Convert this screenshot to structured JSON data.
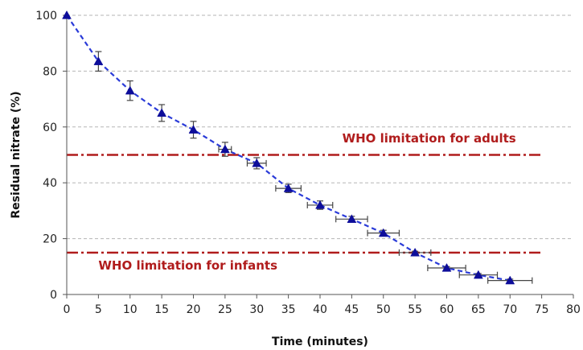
{
  "chart_data": {
    "type": "scatter",
    "title": "",
    "xlabel": "Time (minutes)",
    "ylabel": "Residual nitrate (%)",
    "xlim": [
      0,
      80
    ],
    "ylim": [
      0,
      100
    ],
    "x_ticks": [
      0,
      5,
      10,
      15,
      20,
      25,
      30,
      35,
      40,
      45,
      50,
      55,
      60,
      65,
      70,
      75,
      80
    ],
    "y_ticks": [
      0,
      20,
      40,
      60,
      80,
      100
    ],
    "grid": "horizontal dashed",
    "series": [
      {
        "x": [
          0,
          5,
          10,
          15,
          20,
          25,
          30,
          35,
          40,
          45,
          50,
          55,
          60,
          65,
          70
        ],
        "y": [
          100,
          83.5,
          73,
          65,
          59,
          52,
          47,
          38,
          32,
          27,
          22,
          15,
          9.5,
          7,
          5
        ],
        "y_error": [
          0,
          3.5,
          3.5,
          3,
          3,
          2.5,
          2,
          1.5,
          1.5,
          1,
          1,
          0.5,
          0.5,
          0.5,
          0.5
        ],
        "x_error": [
          0,
          0,
          0,
          0,
          0,
          1,
          1.5,
          2,
          2,
          2.5,
          2.5,
          2.5,
          3,
          3,
          3.5
        ],
        "marker": "triangle",
        "color": "#0d0d9a",
        "line_style": "dashed",
        "line_color": "#2a3bd8"
      }
    ],
    "reference_lines": [
      {
        "y": 50,
        "label": "WHO limitation for adults",
        "color": "#b01c1c",
        "x_range": [
          0,
          75
        ]
      },
      {
        "y": 15,
        "label": "WHO limitation for infants",
        "color": "#b01c1c",
        "x_range": [
          0,
          75
        ]
      }
    ]
  }
}
